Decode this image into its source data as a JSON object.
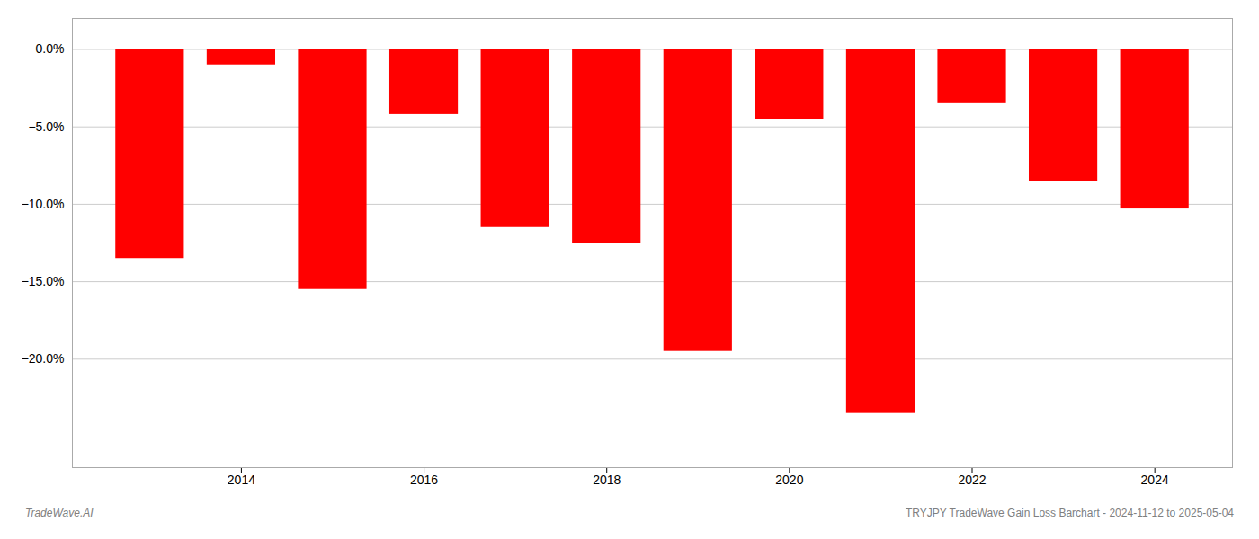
{
  "chart_data": {
    "type": "bar",
    "x": [
      2013,
      2014,
      2015,
      2016,
      2017,
      2018,
      2019,
      2020,
      2021,
      2022,
      2023,
      2024
    ],
    "values": [
      -13.5,
      -1.0,
      -15.5,
      -4.2,
      -11.5,
      -12.5,
      -19.5,
      -4.5,
      -23.5,
      -3.5,
      -8.5,
      -10.3
    ],
    "color": "#ff0000",
    "xlim": [
      2012.15,
      2024.85
    ],
    "xticks": [
      2014,
      2016,
      2018,
      2020,
      2022,
      2024
    ],
    "ylim": [
      -27,
      2
    ],
    "yticks": [
      {
        "value": 0.0,
        "label": "0.0%"
      },
      {
        "value": -5.0,
        "label": "−5.0%"
      },
      {
        "value": -10.0,
        "label": "−10.0%"
      },
      {
        "value": -15.0,
        "label": "−15.0%"
      },
      {
        "value": -20.0,
        "label": "−20.0%"
      }
    ],
    "grid": true,
    "annotations": [
      "TradeWave.AI",
      "TRYJPY TradeWave Gain Loss Barchart - 2024-11-12 to 2025-05-04"
    ]
  }
}
